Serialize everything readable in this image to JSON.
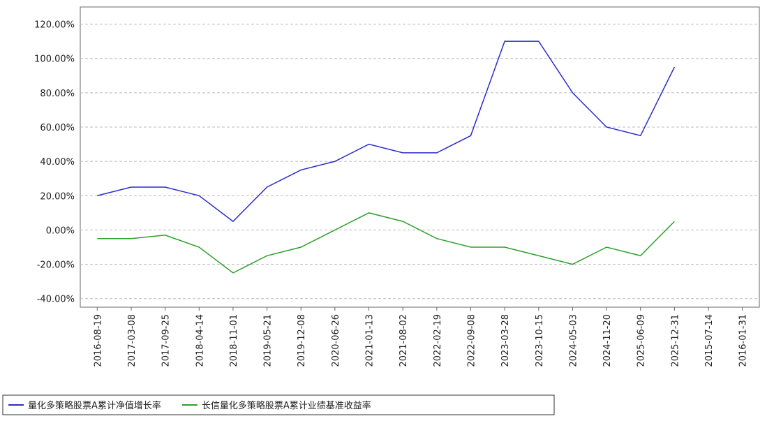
{
  "chart_data": {
    "type": "line",
    "categories": [
      "2016-08-19",
      "2017-03-08",
      "2017-09-25",
      "2018-04-14",
      "2018-11-01",
      "2019-05-21",
      "2019-12-08",
      "2020-06-26",
      "2021-01-13",
      "2021-08-02",
      "2022-02-19",
      "2022-09-08",
      "2023-03-28",
      "2023-10-15",
      "2024-05-03",
      "2024-11-20",
      "2025-06-09",
      "2025-12-31",
      "2015-07-14",
      "2016-01-31"
    ],
    "series": [
      {
        "name": "量化多策略股票A累计净值增长率",
        "color": "#2a2ad0",
        "values": [
          20,
          25,
          25,
          20,
          5,
          25,
          35,
          40,
          50,
          45,
          45,
          55,
          110,
          110,
          80,
          60,
          55,
          95,
          null,
          null
        ]
      },
      {
        "name": "长信量化多策略股票A累计业绩基准收益率",
        "color": "#2ca02c",
        "values": [
          -5,
          -5,
          -3,
          -10,
          -25,
          -15,
          -10,
          0,
          10,
          5,
          -5,
          -10,
          -10,
          -15,
          -20,
          -10,
          -15,
          5,
          null,
          null
        ]
      }
    ],
    "ylim": [
      -45,
      130
    ],
    "yticks": [
      {
        "value": -40,
        "label": "-40.00%"
      },
      {
        "value": -20,
        "label": "-20.00%"
      },
      {
        "value": 0,
        "label": "0.00%"
      },
      {
        "value": 20,
        "label": "20.00%"
      },
      {
        "value": 40,
        "label": "40.00%"
      },
      {
        "value": 60,
        "label": "60.00%"
      },
      {
        "value": 80,
        "label": "80.00%"
      },
      {
        "value": 100,
        "label": "100.00%"
      },
      {
        "value": 120,
        "label": "120.00%"
      }
    ],
    "grid": true
  }
}
